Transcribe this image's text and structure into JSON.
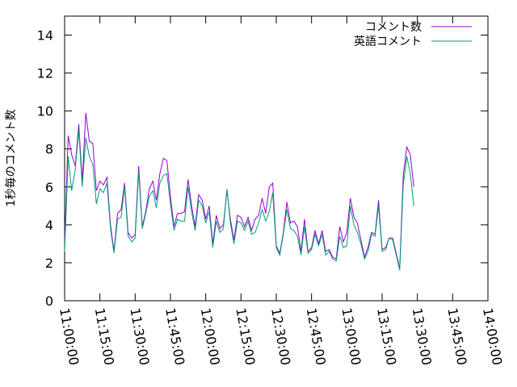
{
  "chart_data": {
    "type": "line",
    "title": "",
    "xlabel": "",
    "ylabel": "1秒毎のコメント数",
    "xlim": [
      "11:00:00",
      "14:00:00"
    ],
    "ylim": [
      0,
      15
    ],
    "x_ticks": [
      "11:00:00",
      "11:15:00",
      "11:30:00",
      "11:45:00",
      "12:00:00",
      "12:15:00",
      "12:30:00",
      "12:45:00",
      "13:00:00",
      "13:15:00",
      "13:30:00",
      "13:45:00",
      "14:00:00"
    ],
    "y_ticks": [
      "0",
      "2",
      "4",
      "6",
      "8",
      "10",
      "12",
      "14"
    ],
    "grid": false,
    "legend_position": "top-right",
    "x_start": "11:00:00",
    "x_step_seconds": 90,
    "series": [
      {
        "name": "コメント数",
        "color": "#9400d3",
        "values": [
          3.0,
          8.7,
          7.7,
          7.1,
          9.3,
          6.3,
          9.9,
          8.4,
          8.3,
          5.8,
          6.3,
          6.1,
          6.5,
          4.0,
          2.6,
          4.6,
          4.8,
          6.2,
          3.6,
          3.3,
          3.5,
          7.1,
          3.9,
          4.7,
          5.9,
          6.3,
          5.3,
          6.7,
          7.5,
          7.4,
          5.5,
          3.9,
          4.6,
          4.6,
          4.7,
          6.4,
          5.0,
          3.9,
          5.6,
          5.3,
          4.3,
          5.0,
          3.0,
          4.5,
          3.8,
          4.0,
          5.8,
          4.3,
          3.2,
          4.5,
          4.4,
          3.9,
          4.4,
          3.7,
          4.3,
          4.5,
          5.4,
          4.6,
          6.0,
          6.2,
          2.9,
          2.5,
          3.6,
          5.2,
          4.1,
          4.2,
          3.9,
          2.6,
          4.3,
          2.6,
          2.8,
          3.7,
          3.0,
          3.7,
          2.6,
          2.7,
          2.3,
          2.2,
          3.9,
          3.1,
          3.6,
          5.4,
          4.4,
          4.1,
          3.2,
          2.3,
          2.8,
          3.6,
          3.5,
          5.3,
          2.7,
          2.8,
          3.3,
          3.3,
          2.5,
          1.7,
          6.6,
          8.1,
          7.7,
          6.0
        ]
      },
      {
        "name": "英語コメント",
        "color": "#009e73",
        "values": [
          2.6,
          7.6,
          5.8,
          6.9,
          9.0,
          6.0,
          8.6,
          7.6,
          7.2,
          5.1,
          5.9,
          5.7,
          6.2,
          3.8,
          2.5,
          4.3,
          4.4,
          6.0,
          3.4,
          3.1,
          3.3,
          6.8,
          3.8,
          4.6,
          5.5,
          5.8,
          4.9,
          6.2,
          6.6,
          6.7,
          5.1,
          3.7,
          4.3,
          4.2,
          4.2,
          6.0,
          4.7,
          3.7,
          5.3,
          5.0,
          4.1,
          4.7,
          2.8,
          4.2,
          3.6,
          3.8,
          5.9,
          4.1,
          3.0,
          4.2,
          4.1,
          3.7,
          4.2,
          3.5,
          3.6,
          4.1,
          4.8,
          4.2,
          4.7,
          5.7,
          2.8,
          2.4,
          3.5,
          4.8,
          3.8,
          3.7,
          3.4,
          2.4,
          3.9,
          2.5,
          2.7,
          3.5,
          2.9,
          3.5,
          2.4,
          2.6,
          2.2,
          2.1,
          3.4,
          2.8,
          2.9,
          5.0,
          4.0,
          3.6,
          3.0,
          2.2,
          2.6,
          3.5,
          3.4,
          5.0,
          2.6,
          2.7,
          3.3,
          3.2,
          2.4,
          1.6,
          6.1,
          7.6,
          6.7,
          5.0
        ]
      }
    ]
  }
}
